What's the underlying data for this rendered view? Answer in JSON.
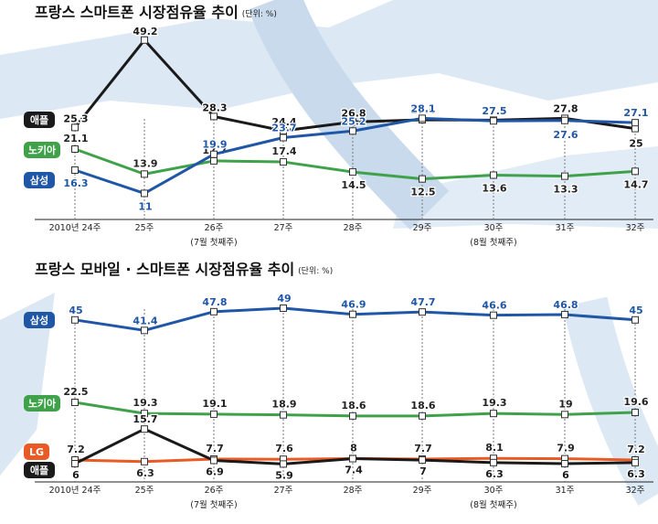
{
  "chart_data": [
    {
      "type": "line",
      "title": "프랑스 스마트폰 시장점유율 추이",
      "unit_note": "(단위: %)",
      "categories": [
        "2010년 24주",
        "25주",
        "26주",
        "27주",
        "28주",
        "29주",
        "30주",
        "31주",
        "32주"
      ],
      "category_sublabels": [
        "",
        "",
        "(7월 첫째주)",
        "",
        "",
        "",
        "(8월 첫째주)",
        "",
        ""
      ],
      "series": [
        {
          "name": "애플",
          "color": "#1a1a1a",
          "label_bg": "#1a1a1a",
          "values": [
            25.3,
            49.2,
            28.3,
            24.4,
            26.8,
            27.4,
            27.3,
            27.8,
            25.0
          ]
        },
        {
          "name": "노키아",
          "color": "#3fa24a",
          "label_bg": "#3fa24a",
          "values": [
            21.1,
            13.9,
            17.7,
            17.4,
            14.5,
            12.5,
            13.6,
            13.3,
            14.7
          ]
        },
        {
          "name": "삼성",
          "color": "#1f57a6",
          "label_bg": "#1f57a6",
          "values": [
            16.3,
            11.0,
            19.9,
            23.7,
            25.2,
            28.1,
            27.5,
            27.6,
            27.1
          ]
        }
      ]
    },
    {
      "type": "line",
      "title": "프랑스 모바일 · 스마트폰 시장점유율 추이",
      "unit_note": "(단위: %)",
      "categories": [
        "2010년 24주",
        "25주",
        "26주",
        "27주",
        "28주",
        "29주",
        "30주",
        "31주",
        "32주"
      ],
      "category_sublabels": [
        "",
        "",
        "(7월 첫째주)",
        "",
        "",
        "",
        "(8월 첫째주)",
        "",
        ""
      ],
      "series": [
        {
          "name": "삼성",
          "color": "#1f57a6",
          "label_bg": "#1f57a6",
          "values": [
            45.0,
            41.4,
            47.8,
            49.0,
            46.9,
            47.7,
            46.6,
            46.8,
            45.0
          ]
        },
        {
          "name": "노키아",
          "color": "#3fa24a",
          "label_bg": "#3fa24a",
          "values": [
            22.5,
            19.3,
            19.1,
            18.9,
            18.6,
            18.6,
            19.3,
            19.0,
            19.6
          ]
        },
        {
          "name": "LG",
          "color": "#ea5a24",
          "label_bg": "#ea5a24",
          "values": [
            7.2,
            6.3,
            7.7,
            7.6,
            8.0,
            7.7,
            8.1,
            7.9,
            7.2
          ]
        },
        {
          "name": "애플",
          "color": "#1a1a1a",
          "label_bg": "#1a1a1a",
          "values": [
            6.0,
            15.7,
            6.9,
            5.9,
            7.4,
            7.0,
            6.3,
            6.0,
            6.3
          ]
        }
      ]
    }
  ]
}
